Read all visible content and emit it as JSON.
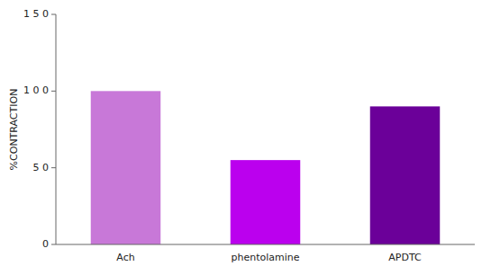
{
  "chart_data": {
    "type": "bar",
    "ylabel": "%CONTRACTION",
    "categories": [
      "Ach",
      "phentolamine",
      "APDTC"
    ],
    "values": [
      100,
      55,
      90
    ],
    "colors": [
      "#C878D8",
      "#BB00EE",
      "#6B0099"
    ],
    "ylim": [
      0,
      150
    ],
    "yticks": [
      0,
      {
        "value": 50,
        "label": "5 0"
      },
      {
        "value": 100,
        "label": "1 0 0"
      },
      {
        "value": 150,
        "label": "1 5 0"
      }
    ],
    "grid": false
  }
}
